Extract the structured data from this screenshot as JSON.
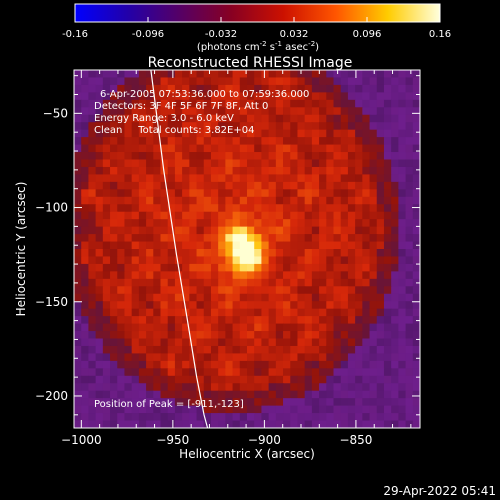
{
  "chart_data": {
    "type": "heatmap",
    "title": "Reconstructed RHESSI Image",
    "colorbar": {
      "min": -0.16,
      "max": 0.16,
      "ticks": [
        "-0.16",
        "-0.096",
        "-0.032",
        "0.032",
        "0.096",
        "0.16"
      ],
      "unit_parts": [
        "(photons cm",
        "-2",
        " s",
        "-1",
        " asec",
        "-2",
        ")"
      ],
      "colors": [
        "#0000ff",
        "#2200aa",
        "#550066",
        "#880022",
        "#cc1100",
        "#ff5500",
        "#ffcc00",
        "#ffffdd"
      ]
    },
    "xlabel": "Heliocentric X (arcsec)",
    "ylabel": "Heliocentric Y (arcsec)",
    "xlim": [
      -1004,
      -815
    ],
    "ylim": [
      -217,
      -27
    ],
    "xticks": [
      -1000,
      -950,
      -900,
      -850
    ],
    "yticks": [
      -50,
      -100,
      -150,
      -200
    ],
    "annotation_lines": [
      "6-Apr-2005 07:53:36.000 to 07:59:36.000",
      "Detectors: 3F 4F 5F 6F 7F 8F, Att 0",
      "Energy Range: 3.0 - 6.0 keV",
      "Clean     Total counts: 3.82E+04"
    ],
    "peak": {
      "label": "Position of Peak = [-911,-123]",
      "x": -911,
      "y": -123,
      "value": 0.16
    },
    "limb_curve": {
      "x": [
        -962,
        -955,
        -948,
        -942,
        -937,
        -933,
        -931
      ],
      "y": [
        -27,
        -80,
        -125,
        -160,
        -190,
        -210,
        -217
      ]
    },
    "emission_region": {
      "center_x": -918,
      "center_y": -110,
      "radius_x": 82,
      "radius_y": 88
    },
    "grid": false,
    "legend": "none"
  },
  "footer": {
    "timestamp": "29-Apr-2022 05:41"
  }
}
